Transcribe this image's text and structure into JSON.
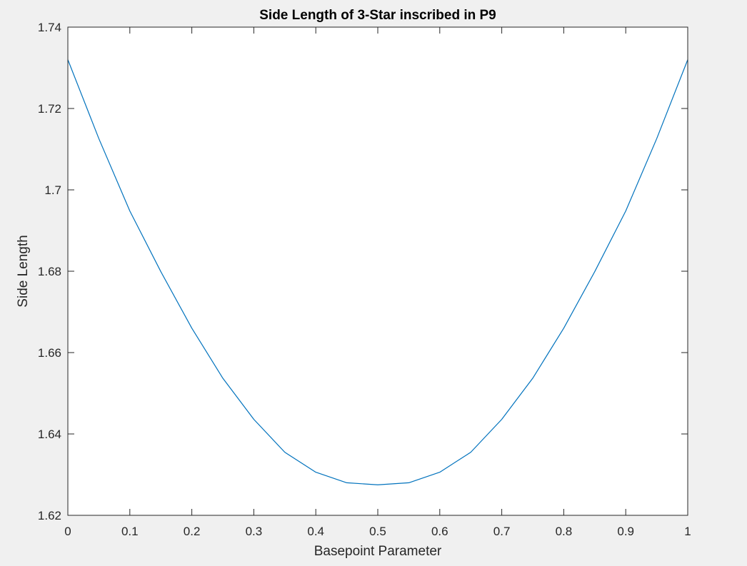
{
  "chart_data": {
    "type": "line",
    "title": "Side Length of 3-Star inscribed in P9",
    "xlabel": "Basepoint Parameter",
    "ylabel": "Side Length",
    "xlim": [
      0,
      1
    ],
    "ylim": [
      1.62,
      1.74
    ],
    "x_ticks": [
      0,
      0.1,
      0.2,
      0.3,
      0.4,
      0.5,
      0.6,
      0.7,
      0.8,
      0.9,
      1
    ],
    "x_tick_labels": [
      "0",
      "0.1",
      "0.2",
      "0.3",
      "0.4",
      "0.5",
      "0.6",
      "0.7",
      "0.8",
      "0.9",
      "1"
    ],
    "y_ticks": [
      1.62,
      1.64,
      1.66,
      1.68,
      1.7,
      1.72,
      1.74
    ],
    "y_tick_labels": [
      "1.62",
      "1.64",
      "1.66",
      "1.68",
      "1.7",
      "1.72",
      "1.74"
    ],
    "grid": false,
    "box": true,
    "series": [
      {
        "color": "#0072bd",
        "x": [
          0,
          0.05,
          0.1,
          0.15,
          0.2,
          0.25,
          0.3,
          0.35,
          0.4,
          0.45,
          0.5,
          0.55,
          0.6,
          0.65,
          0.7,
          0.75,
          0.8,
          0.85,
          0.9,
          0.95,
          1
        ],
        "y": [
          1.732,
          1.7126,
          1.6948,
          1.6799,
          1.666,
          1.6537,
          1.6436,
          1.6355,
          1.6306,
          1.628,
          1.6275,
          1.628,
          1.6306,
          1.6355,
          1.6436,
          1.6537,
          1.666,
          1.6799,
          1.6948,
          1.7126,
          1.732
        ]
      }
    ]
  }
}
